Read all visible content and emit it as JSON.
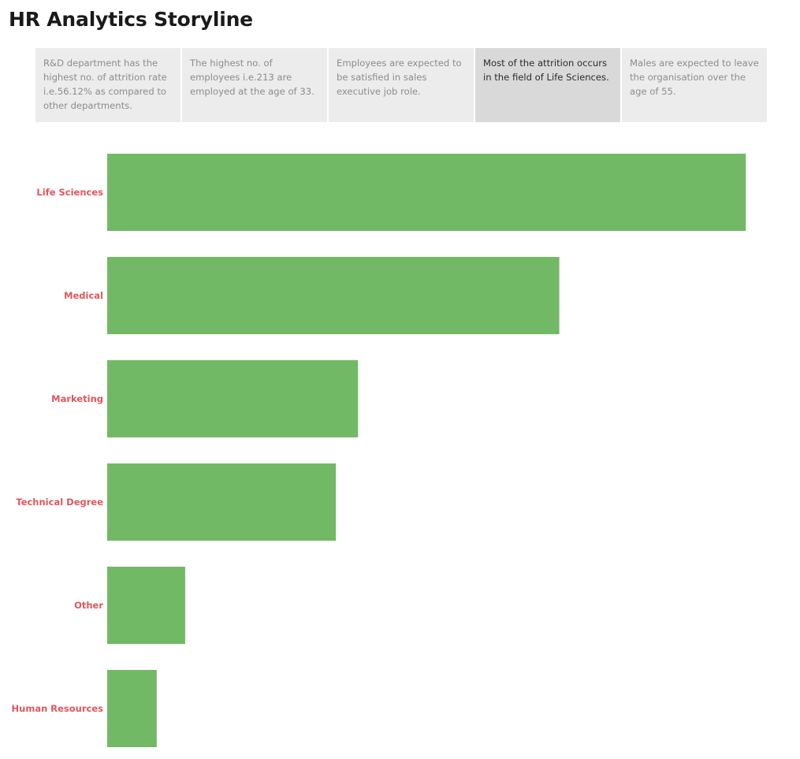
{
  "header": {
    "title": "HR Analytics Storyline"
  },
  "story_points": [
    {
      "text": "R&D department has the highest no. of attrition rate i.e.56.12% as compared to other departments.",
      "active": false
    },
    {
      "text": "The highest no. of employees i.e.213 are employed at the age of  33.",
      "active": false
    },
    {
      "text": "Employees are expected to be satisfied in sales executive job role.",
      "active": false
    },
    {
      "text": "Most of the attrition occurs in the field of Life Sciences.",
      "active": true
    },
    {
      "text": "Males are expected to leave the organisation over the age of 55.",
      "active": false
    }
  ],
  "colors": {
    "bar": "#72b966",
    "category_label": "#e0565b",
    "active_story_point": "#d9d9d9",
    "story_point": "#ececec"
  },
  "chart_data": {
    "type": "bar",
    "orientation": "horizontal",
    "categories": [
      "Life Sciences",
      "Medical",
      "Marketing",
      "Technical Degree",
      "Other",
      "Human Resources"
    ],
    "values": [
      606,
      429,
      238,
      217,
      74,
      47
    ],
    "xlim": [
      0,
      620
    ],
    "title": "",
    "xlabel": "",
    "ylabel": "",
    "grid": false,
    "legend": false
  }
}
